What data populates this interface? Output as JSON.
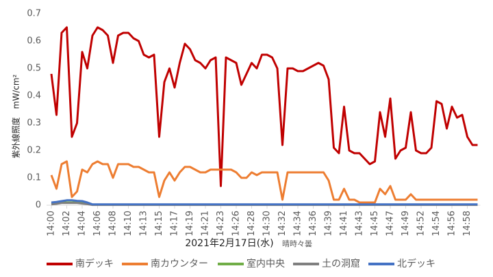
{
  "chart_data": {
    "type": "line",
    "y_label": "紫外線照度　mW/cm²",
    "x_label": "2021年2月17日(水)",
    "x_note": "晴時々曇",
    "categories": [
      "14:00",
      null,
      null,
      "14:02",
      null,
      null,
      "14:04",
      null,
      null,
      "14:06",
      null,
      null,
      "14:08",
      null,
      null,
      "14:10",
      null,
      null,
      "14:13",
      null,
      null,
      "14:15",
      null,
      null,
      "14:17",
      null,
      null,
      "14:19",
      null,
      null,
      "14:21",
      null,
      null,
      "14:23",
      null,
      null,
      "14:26",
      null,
      null,
      "14:28",
      null,
      null,
      "14:30",
      null,
      null,
      "14:32",
      null,
      null,
      "14:34",
      null,
      null,
      "14:36",
      null,
      null,
      "14:39",
      null,
      null,
      "14:41",
      null,
      null,
      "14:43",
      null,
      null,
      "14:45",
      null,
      null,
      "14:47",
      null,
      null,
      "14:49",
      null,
      null,
      "14:52",
      null,
      null,
      "14:54",
      null,
      null,
      "14:56",
      null,
      null,
      "14:58",
      null,
      null
    ],
    "ylim": [
      0,
      0.7
    ],
    "yticks": [
      0,
      0.1,
      0.2,
      0.3,
      0.4,
      0.5,
      0.6,
      0.7
    ],
    "grid": false,
    "series": [
      {
        "name": "南デッキ",
        "color": "#c00000",
        "values": [
          0.48,
          0.33,
          0.63,
          0.65,
          0.25,
          0.3,
          0.56,
          0.5,
          0.62,
          0.65,
          0.64,
          0.62,
          0.52,
          0.62,
          0.63,
          0.63,
          0.61,
          0.6,
          0.55,
          0.54,
          0.55,
          0.25,
          0.45,
          0.5,
          0.43,
          0.52,
          0.59,
          0.57,
          0.53,
          0.52,
          0.5,
          0.53,
          0.54,
          0.07,
          0.54,
          0.53,
          0.52,
          0.44,
          0.48,
          0.52,
          0.5,
          0.55,
          0.55,
          0.54,
          0.5,
          0.22,
          0.5,
          0.5,
          0.49,
          0.49,
          0.5,
          0.51,
          0.52,
          0.51,
          0.46,
          0.21,
          0.19,
          0.36,
          0.2,
          0.19,
          0.19,
          0.17,
          0.15,
          0.16,
          0.34,
          0.25,
          0.39,
          0.17,
          0.2,
          0.21,
          0.34,
          0.2,
          0.19,
          0.19,
          0.21,
          0.38,
          0.37,
          0.28,
          0.36,
          0.32,
          0.33,
          0.25,
          0.22,
          0.22
        ]
      },
      {
        "name": "南カウンター",
        "color": "#ed7d31",
        "values": [
          0.11,
          0.06,
          0.15,
          0.16,
          0.03,
          0.05,
          0.13,
          0.12,
          0.15,
          0.16,
          0.15,
          0.15,
          0.1,
          0.15,
          0.15,
          0.15,
          0.14,
          0.14,
          0.13,
          0.12,
          0.12,
          0.03,
          0.09,
          0.12,
          0.09,
          0.12,
          0.14,
          0.14,
          0.13,
          0.12,
          0.12,
          0.13,
          0.13,
          0.13,
          0.13,
          0.13,
          0.12,
          0.1,
          0.1,
          0.12,
          0.11,
          0.12,
          0.12,
          0.12,
          0.12,
          0.02,
          0.12,
          0.12,
          0.12,
          0.12,
          0.12,
          0.12,
          0.12,
          0.12,
          0.09,
          0.02,
          0.02,
          0.06,
          0.02,
          0.02,
          0.01,
          0.01,
          0.01,
          0.01,
          0.06,
          0.04,
          0.07,
          0.02,
          0.02,
          0.02,
          0.04,
          0.02,
          0.02,
          0.02,
          0.02,
          0.02,
          0.02,
          0.02,
          0.02,
          0.02,
          0.02,
          0.02,
          0.02,
          0.02
        ]
      },
      {
        "name": "室内中央",
        "color": "#70ad47",
        "values": [
          0.005,
          0.008,
          0.01,
          0.01,
          0.01,
          0.01,
          0.008,
          0.005,
          0.002,
          0.002,
          0.002,
          0.002,
          0.002,
          0.002,
          0.002,
          0.002,
          0.002,
          0.002,
          0.002,
          0.002,
          0.002,
          0.002,
          0.002,
          0.002,
          0.002,
          0.002,
          0.002,
          0.002,
          0.002,
          0.002,
          0.002,
          0.002,
          0.002,
          0.002,
          0.002,
          0.002,
          0.002,
          0.002,
          0.002,
          0.002,
          0.002,
          0.002,
          0.002,
          0.002,
          0.002,
          0.002,
          0.002,
          0.002,
          0.002,
          0.002,
          0.002,
          0.002,
          0.002,
          0.002,
          0.002,
          0.002,
          0.002,
          0.002,
          0.002,
          0.002,
          0.002,
          0.002,
          0.002,
          0.002,
          0.002,
          0.002,
          0.002,
          0.002,
          0.002,
          0.002,
          0.002,
          0.002,
          0.002,
          0.002,
          0.002,
          0.002,
          0.002,
          0.002,
          0.002,
          0.002,
          0.002,
          0.002,
          0.002,
          0.002
        ]
      },
      {
        "name": "土の洞窟",
        "color": "#7f7f7f",
        "values": [
          0.003,
          0.005,
          0.008,
          0.008,
          0.008,
          0.008,
          0.006,
          0.004,
          0.001,
          0.001,
          0.001,
          0.001,
          0.001,
          0.001,
          0.001,
          0.001,
          0.001,
          0.001,
          0.001,
          0.001,
          0.001,
          0.001,
          0.001,
          0.001,
          0.001,
          0.001,
          0.001,
          0.001,
          0.001,
          0.001,
          0.001,
          0.001,
          0.001,
          0.001,
          0.001,
          0.001,
          0.001,
          0.001,
          0.001,
          0.001,
          0.001,
          0.001,
          0.001,
          0.001,
          0.001,
          0.001,
          0.001,
          0.001,
          0.001,
          0.001,
          0.001,
          0.001,
          0.001,
          0.001,
          0.001,
          0.001,
          0.001,
          0.001,
          0.001,
          0.001,
          0.001,
          0.001,
          0.001,
          0.001,
          0.001,
          0.001,
          0.001,
          0.001,
          0.001,
          0.001,
          0.001,
          0.001,
          0.001,
          0.001,
          0.001,
          0.001,
          0.001,
          0.001,
          0.001,
          0.001,
          0.001,
          0.001,
          0.001,
          0.001
        ]
      },
      {
        "name": "北デッキ",
        "color": "#4472c4",
        "values": [
          0.01,
          0.012,
          0.015,
          0.018,
          0.018,
          0.016,
          0.015,
          0.01,
          0.003,
          0.003,
          0.003,
          0.003,
          0.003,
          0.003,
          0.003,
          0.003,
          0.003,
          0.003,
          0.003,
          0.003,
          0.003,
          0.003,
          0.003,
          0.003,
          0.003,
          0.003,
          0.003,
          0.003,
          0.003,
          0.003,
          0.003,
          0.003,
          0.003,
          0.003,
          0.003,
          0.003,
          0.003,
          0.003,
          0.003,
          0.003,
          0.003,
          0.003,
          0.003,
          0.003,
          0.003,
          0.003,
          0.003,
          0.003,
          0.003,
          0.003,
          0.003,
          0.003,
          0.003,
          0.003,
          0.003,
          0.003,
          0.003,
          0.003,
          0.003,
          0.003,
          0.003,
          0.003,
          0.003,
          0.003,
          0.003,
          0.003,
          0.003,
          0.003,
          0.003,
          0.003,
          0.003,
          0.003,
          0.003,
          0.003,
          0.003,
          0.003,
          0.003,
          0.003,
          0.003,
          0.003,
          0.003,
          0.003,
          0.003,
          0.003
        ]
      }
    ]
  }
}
